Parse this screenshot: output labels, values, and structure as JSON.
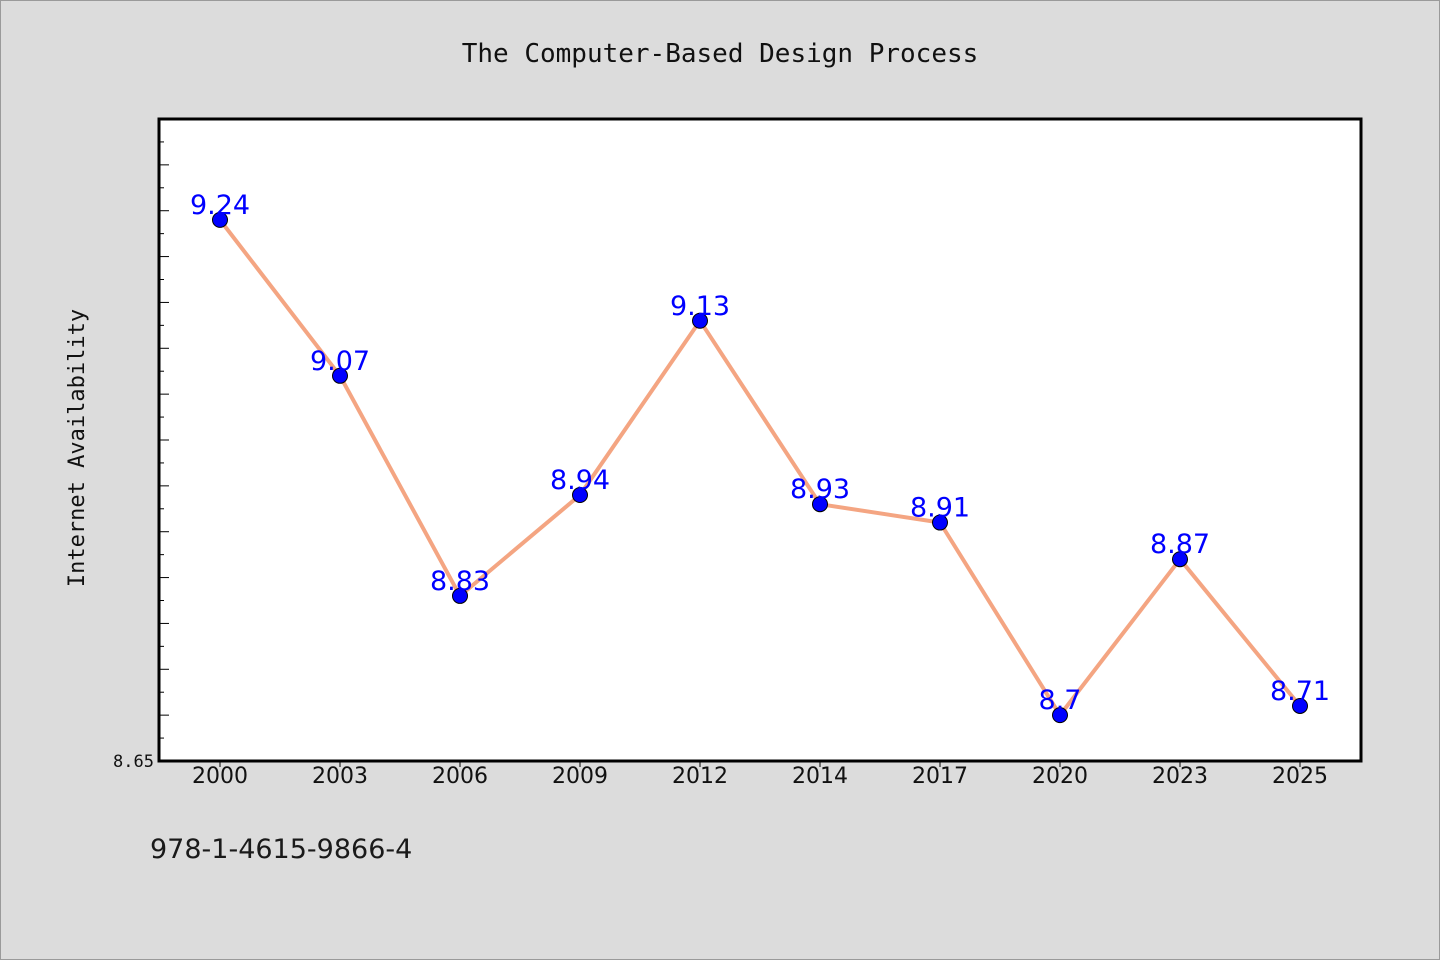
{
  "chart_data": {
    "type": "line",
    "title": "The Computer-Based Design Process",
    "xlabel": "",
    "ylabel": "Internet Availability",
    "categories": [
      "2000",
      "2003",
      "2006",
      "2009",
      "2012",
      "2014",
      "2017",
      "2020",
      "2023",
      "2025"
    ],
    "series": [
      {
        "values": [
          9.24,
          9.07,
          8.83,
          8.94,
          9.13,
          8.93,
          8.91,
          8.7,
          8.87,
          8.71
        ]
      }
    ],
    "data_labels": [
      "9.24",
      "9.07",
      "8.83",
      "8.94",
      "9.13",
      "8.93",
      "8.91",
      "8.7",
      "8.87",
      "8.71"
    ],
    "ylim": [
      8.65,
      9.35
    ],
    "ytick_label": "8.65",
    "grid": false,
    "line_color": "#f4a582",
    "marker_color": "#0000ff",
    "label_color": "#0000ff",
    "plot_background": "#ffffff",
    "page_background": "#dcdcdc"
  },
  "footnote": "978-1-4615-9866-4"
}
